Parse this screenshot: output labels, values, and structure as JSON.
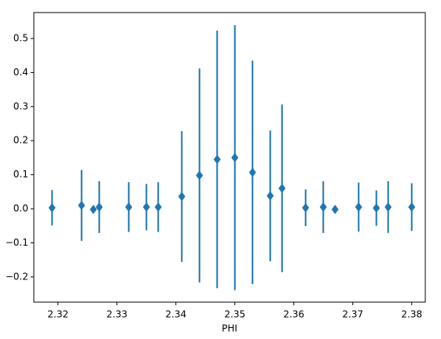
{
  "chart_data": {
    "type": "errorbar",
    "xlabel": "PHI",
    "color": "#1f77b4",
    "marker": "diamond",
    "x": [
      2.319,
      2.324,
      2.326,
      2.327,
      2.332,
      2.335,
      2.337,
      2.341,
      2.344,
      2.347,
      2.35,
      2.353,
      2.356,
      2.358,
      2.362,
      2.365,
      2.367,
      2.371,
      2.374,
      2.376,
      2.38
    ],
    "values": [
      0.003,
      0.01,
      -0.002,
      0.005,
      0.005,
      0.005,
      0.005,
      0.036,
      0.098,
      0.145,
      0.15,
      0.107,
      0.038,
      0.06,
      0.003,
      0.005,
      -0.002,
      0.005,
      0.002,
      0.005,
      0.005
    ],
    "errors": [
      0.052,
      0.104,
      0.005,
      0.076,
      0.073,
      0.068,
      0.073,
      0.192,
      0.314,
      0.378,
      0.389,
      0.328,
      0.192,
      0.246,
      0.054,
      0.076,
      0.005,
      0.072,
      0.052,
      0.076,
      0.07
    ],
    "xlim": [
      2.3159,
      2.3823
    ],
    "ylim": [
      -0.274,
      0.576
    ],
    "xticks": [
      2.32,
      2.33,
      2.34,
      2.35,
      2.36,
      2.37,
      2.38
    ],
    "yticks": [
      {
        "value": -0.2,
        "label": "−0.2"
      },
      {
        "value": -0.1,
        "label": "−0.1"
      },
      {
        "value": 0,
        "label": "0.0"
      },
      0.1,
      0.2,
      0.3,
      0.4,
      0.5
    ],
    "grid": false
  }
}
